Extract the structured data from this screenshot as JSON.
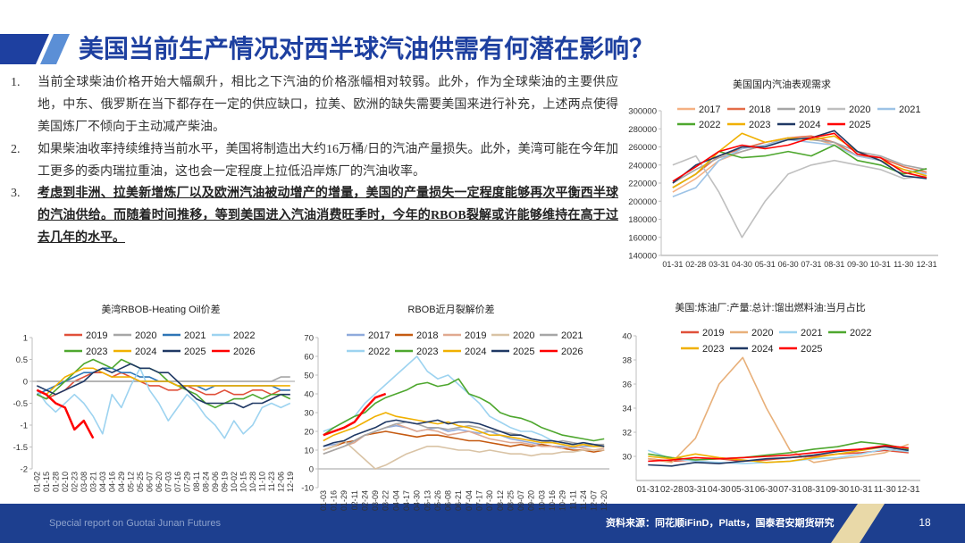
{
  "title": "美国当前生产情况对西半球汽油供需有何潜在影响？",
  "paragraphs": [
    {
      "number": "1.",
      "text": "当前全球柴油价格开始大幅飙升，相比之下汽油的价格涨幅相对较弱。此外，作为全球柴油的主要供应地，中东、俄罗斯在当下都存在一定的供应缺口，拉美、欧洲的缺失需要美国来进行补充，上述两点使得美国炼厂不倾向于主动减产柴油。"
    },
    {
      "number": "2.",
      "text": "如果柴油收率持续维持当前水平，美国将制造出大约16万桶/日的汽油产量损失。此外，美湾可能在今年加工更多的委内瑞拉重油，这也会一定程度上拉低沿岸炼厂的汽油收率。"
    },
    {
      "number": "3.",
      "text": "考虑到非洲、拉美新增炼厂以及欧洲汽油被动增产的增量，美国的产量损失一定程度能够再次平衡西半球的汽油供给。而随着时间推移，等到美国进入汽油消费旺季时，今年的RBOB裂解或许能够维持在高于过去几年的水平。"
    }
  ],
  "footer": {
    "left": "Special report on Guotai Junan Futures",
    "source": "资料来源：同花顺iFinD，Platts，国泰君安期货研究",
    "page": "18"
  },
  "chart_data": [
    {
      "type": "line",
      "title": "美国国内汽油表观需求",
      "categories": [
        "01-31",
        "02-28",
        "03-31",
        "04-30",
        "05-31",
        "06-30",
        "07-31",
        "08-31",
        "09-30",
        "10-31",
        "11-30",
        "12-31"
      ],
      "ylim": [
        140000,
        300000
      ],
      "yticks": [
        140000,
        160000,
        180000,
        200000,
        220000,
        240000,
        260000,
        280000,
        300000
      ],
      "series": [
        {
          "name": "2017",
          "color": "#f5b183",
          "values": [
            210000,
            225000,
            245000,
            255000,
            262000,
            268000,
            270000,
            262000,
            250000,
            245000,
            235000,
            230000
          ]
        },
        {
          "name": "2018",
          "color": "#e46c48",
          "values": [
            215000,
            230000,
            250000,
            258000,
            265000,
            270000,
            272000,
            265000,
            250000,
            248000,
            238000,
            232000
          ]
        },
        {
          "name": "2019",
          "color": "#a6a6a6",
          "values": [
            220000,
            235000,
            248000,
            255000,
            262000,
            270000,
            268000,
            265000,
            255000,
            250000,
            240000,
            235000
          ]
        },
        {
          "name": "2020",
          "color": "#bfbfbf",
          "values": [
            240000,
            250000,
            210000,
            160000,
            200000,
            230000,
            240000,
            245000,
            240000,
            235000,
            225000,
            228000
          ]
        },
        {
          "name": "2021",
          "color": "#9dc3e6",
          "values": [
            205000,
            215000,
            245000,
            258000,
            262000,
            268000,
            265000,
            262000,
            250000,
            245000,
            235000,
            230000
          ]
        },
        {
          "name": "2022",
          "color": "#4ea72e",
          "values": [
            215000,
            230000,
            255000,
            248000,
            250000,
            255000,
            250000,
            262000,
            245000,
            240000,
            230000,
            236000
          ]
        },
        {
          "name": "2023",
          "color": "#f0b000",
          "values": [
            215000,
            230000,
            255000,
            275000,
            265000,
            270000,
            268000,
            272000,
            255000,
            245000,
            235000,
            228000
          ]
        },
        {
          "name": "2024",
          "color": "#1f3864",
          "values": [
            220000,
            240000,
            250000,
            260000,
            260000,
            268000,
            270000,
            278000,
            255000,
            245000,
            228000,
            225000
          ]
        },
        {
          "name": "2025",
          "color": "#ff0000",
          "values": [
            222000,
            238000,
            255000,
            262000,
            258000,
            262000,
            270000,
            275000,
            252000,
            248000,
            232000,
            226000
          ]
        }
      ]
    },
    {
      "type": "line",
      "title": "美湾RBOB-Heating Oil价差",
      "categories": [
        "01-02",
        "01-15",
        "01-28",
        "02-10",
        "02-23",
        "03-08",
        "03-21",
        "04-03",
        "04-16",
        "04-29",
        "05-12",
        "05-25",
        "06-07",
        "06-20",
        "07-03",
        "07-16",
        "07-29",
        "08-11",
        "08-24",
        "09-06",
        "09-19",
        "10-02",
        "10-15",
        "10-28",
        "11-10",
        "11-23",
        "12-06",
        "12-19"
      ],
      "ylim": [
        -2,
        1
      ],
      "yticks": [
        -2,
        -1.5,
        -1,
        -0.5,
        0,
        0.5,
        1
      ],
      "series": [
        {
          "name": "2019",
          "color": "#e0503a",
          "values": [
            -0.3,
            -0.4,
            -0.3,
            -0.2,
            0.0,
            0.1,
            0.2,
            0.2,
            0.1,
            0.2,
            0.1,
            0.0,
            -0.1,
            -0.1,
            -0.2,
            -0.2,
            -0.1,
            -0.2,
            -0.3,
            -0.3,
            -0.2,
            -0.3,
            -0.3,
            -0.2,
            -0.2,
            -0.3,
            -0.2,
            -0.2
          ]
        },
        {
          "name": "2020",
          "color": "#a6a6a6",
          "values": [
            0,
            0,
            0,
            0,
            0,
            0,
            0,
            0,
            0,
            0,
            0,
            0,
            0,
            0,
            0,
            0,
            0,
            0,
            0,
            0,
            0,
            0,
            0,
            0,
            0,
            0,
            0.1,
            0.1
          ]
        },
        {
          "name": "2021",
          "color": "#2e75b6",
          "values": [
            -0.3,
            -0.2,
            -0.1,
            0.0,
            0.1,
            0.2,
            0.2,
            0.3,
            0.3,
            0.2,
            0.2,
            0.1,
            0.1,
            0.0,
            0.0,
            -0.1,
            -0.1,
            -0.1,
            -0.2,
            -0.1,
            -0.1,
            -0.1,
            -0.1,
            -0.1,
            -0.1,
            -0.1,
            -0.2,
            -0.2
          ]
        },
        {
          "name": "2022",
          "color": "#9dd3f0",
          "values": [
            -0.2,
            -0.5,
            -0.7,
            -0.5,
            -0.3,
            -0.5,
            -0.8,
            -1.2,
            -0.3,
            -0.6,
            -0.1,
            0.3,
            -0.2,
            -0.5,
            -0.9,
            -0.6,
            -0.3,
            -0.5,
            -0.8,
            -1.0,
            -1.3,
            -0.9,
            -1.2,
            -1.0,
            -0.6,
            -0.5,
            -0.6,
            -0.5
          ]
        },
        {
          "name": "2023",
          "color": "#4ea72e",
          "values": [
            -0.3,
            -0.4,
            -0.2,
            0.0,
            0.2,
            0.4,
            0.5,
            0.4,
            0.3,
            0.5,
            0.4,
            0.3,
            0.3,
            0.2,
            0.0,
            -0.1,
            -0.2,
            -0.3,
            -0.5,
            -0.6,
            -0.5,
            -0.4,
            -0.4,
            -0.3,
            -0.4,
            -0.3,
            -0.3,
            -0.4
          ]
        },
        {
          "name": "2024",
          "color": "#f0b000",
          "values": [
            -0.2,
            -0.3,
            -0.1,
            0.1,
            0.2,
            0.3,
            0.3,
            0.2,
            0.1,
            0.1,
            0.1,
            0.0,
            0.0,
            0.0,
            0.0,
            -0.1,
            -0.1,
            -0.1,
            -0.1,
            -0.1,
            -0.1,
            -0.1,
            -0.1,
            -0.1,
            -0.1,
            -0.1,
            -0.1,
            -0.1
          ]
        },
        {
          "name": "2025",
          "color": "#1f3864",
          "values": [
            -0.1,
            -0.2,
            -0.3,
            -0.2,
            -0.1,
            0.0,
            0.2,
            0.3,
            0.2,
            0.3,
            0.4,
            0.3,
            0.3,
            0.2,
            0.2,
            0.0,
            -0.2,
            -0.4,
            -0.5,
            -0.5,
            -0.5,
            -0.5,
            -0.6,
            -0.5,
            -0.5,
            -0.4,
            -0.3,
            -0.3
          ]
        },
        {
          "name": "2026",
          "color": "#ff0000",
          "values": [
            -0.2,
            -0.3,
            -0.5,
            -0.6,
            -1.1,
            -0.9,
            -1.3,
            null,
            null,
            null,
            null,
            null,
            null,
            null,
            null,
            null,
            null,
            null,
            null,
            null,
            null,
            null,
            null,
            null,
            null,
            null,
            null,
            null
          ]
        }
      ]
    },
    {
      "type": "line",
      "title": "RBOB近月裂解价差",
      "categories": [
        "01-03",
        "01-16",
        "01-29",
        "02-11",
        "02-24",
        "03-09",
        "03-22",
        "04-04",
        "04-17",
        "04-30",
        "05-13",
        "05-26",
        "06-08",
        "06-21",
        "07-04",
        "07-17",
        "07-30",
        "08-12",
        "08-25",
        "09-07",
        "09-20",
        "10-03",
        "10-16",
        "10-29",
        "11-11",
        "11-24",
        "12-07",
        "12-20"
      ],
      "ylim": [
        -10,
        70
      ],
      "yticks": [
        -10,
        0,
        10,
        20,
        30,
        40,
        50,
        60,
        70
      ],
      "series": [
        {
          "name": "2017",
          "color": "#8faadc",
          "values": [
            12,
            13,
            14,
            15,
            18,
            20,
            22,
            23,
            22,
            20,
            21,
            22,
            20,
            21,
            20,
            19,
            20,
            18,
            16,
            15,
            14,
            13,
            12,
            12,
            11,
            12,
            12,
            12
          ]
        },
        {
          "name": "2018",
          "color": "#c55a11",
          "values": [
            10,
            12,
            14,
            15,
            18,
            19,
            20,
            19,
            18,
            17,
            18,
            18,
            17,
            16,
            15,
            15,
            14,
            13,
            12,
            13,
            12,
            13,
            12,
            11,
            10,
            10,
            9,
            10
          ]
        },
        {
          "name": "2019",
          "color": "#e0a990",
          "values": [
            8,
            10,
            12,
            14,
            18,
            20,
            22,
            24,
            22,
            20,
            21,
            20,
            18,
            19,
            20,
            18,
            16,
            15,
            14,
            14,
            13,
            12,
            12,
            11,
            12,
            11,
            10,
            11
          ]
        },
        {
          "name": "2020",
          "color": "#d9c3a5",
          "values": [
            10,
            12,
            15,
            10,
            5,
            0,
            2,
            5,
            8,
            10,
            12,
            12,
            11,
            10,
            10,
            9,
            10,
            9,
            8,
            8,
            7,
            8,
            8,
            9,
            9,
            10,
            10,
            10
          ]
        },
        {
          "name": "2021",
          "color": "#a6a6a6",
          "values": [
            8,
            10,
            12,
            15,
            18,
            20,
            22,
            24,
            25,
            24,
            22,
            22,
            21,
            22,
            23,
            22,
            20,
            20,
            19,
            18,
            16,
            15,
            14,
            15,
            14,
            13,
            13,
            13
          ]
        },
        {
          "name": "2022",
          "color": "#9dd3f0",
          "values": [
            20,
            22,
            25,
            28,
            35,
            40,
            45,
            50,
            55,
            60,
            52,
            48,
            50,
            45,
            40,
            35,
            28,
            25,
            22,
            20,
            20,
            18,
            15,
            14,
            13,
            14,
            13,
            12
          ]
        },
        {
          "name": "2023",
          "color": "#4ea72e",
          "values": [
            18,
            22,
            25,
            28,
            30,
            35,
            38,
            40,
            42,
            45,
            46,
            44,
            45,
            48,
            40,
            38,
            35,
            30,
            28,
            27,
            25,
            22,
            20,
            18,
            17,
            16,
            15,
            16
          ]
        },
        {
          "name": "2024",
          "color": "#f0b000",
          "values": [
            15,
            18,
            20,
            22,
            25,
            28,
            30,
            28,
            27,
            26,
            25,
            24,
            25,
            23,
            22,
            20,
            18,
            18,
            17,
            16,
            15,
            14,
            14,
            13,
            12,
            13,
            12,
            12
          ]
        },
        {
          "name": "2025",
          "color": "#1f3864",
          "values": [
            12,
            14,
            15,
            18,
            20,
            22,
            25,
            26,
            25,
            24,
            25,
            26,
            24,
            25,
            25,
            24,
            22,
            20,
            18,
            18,
            16,
            15,
            15,
            14,
            13,
            14,
            13,
            12
          ]
        },
        {
          "name": "2026",
          "color": "#ff0000",
          "values": [
            18,
            20,
            22,
            25,
            32,
            38,
            40,
            null,
            null,
            null,
            null,
            null,
            null,
            null,
            null,
            null,
            null,
            null,
            null,
            null,
            null,
            null,
            null,
            null,
            null,
            null,
            null,
            null
          ]
        }
      ]
    },
    {
      "type": "line",
      "title": "美国:炼油厂:产量:总计:馏出燃料油:当月占比",
      "categories": [
        "01-31",
        "02-28",
        "03-31",
        "04-30",
        "05-31",
        "06-30",
        "07-31",
        "08-31",
        "09-30",
        "10-31",
        "11-30",
        "12-31"
      ],
      "ylim": [
        28,
        40
      ],
      "yticks": [
        30,
        32,
        34,
        36,
        38,
        40
      ],
      "series": [
        {
          "name": "2019",
          "color": "#e0503a",
          "values": [
            29.8,
            29.6,
            29.7,
            29.8,
            29.6,
            29.7,
            29.9,
            30.0,
            30.2,
            30.3,
            30.5,
            30.3
          ]
        },
        {
          "name": "2020",
          "color": "#e8b07a",
          "values": [
            29.8,
            29.5,
            31.5,
            36.0,
            38.2,
            34.0,
            30.5,
            29.5,
            29.8,
            30.0,
            30.3,
            31.0
          ]
        },
        {
          "name": "2021",
          "color": "#9dd3f0",
          "values": [
            30.5,
            29.8,
            29.6,
            29.5,
            29.4,
            29.5,
            29.6,
            29.8,
            29.9,
            30.2,
            30.6,
            30.4
          ]
        },
        {
          "name": "2022",
          "color": "#4ea72e",
          "values": [
            30.2,
            29.9,
            29.7,
            29.8,
            29.9,
            30.1,
            30.3,
            30.6,
            30.8,
            31.2,
            31.0,
            30.6
          ]
        },
        {
          "name": "2023",
          "color": "#f0b000",
          "values": [
            30.0,
            29.8,
            30.2,
            29.9,
            29.7,
            29.5,
            29.6,
            29.9,
            30.2,
            30.5,
            30.8,
            30.7
          ]
        },
        {
          "name": "2024",
          "color": "#1f3864",
          "values": [
            29.3,
            29.2,
            29.5,
            29.4,
            29.6,
            29.8,
            29.9,
            30.1,
            30.4,
            30.6,
            30.8,
            30.5
          ]
        },
        {
          "name": "2025",
          "color": "#ff0000",
          "values": [
            29.6,
            29.7,
            29.9,
            29.8,
            29.9,
            30.0,
            30.1,
            30.3,
            30.5,
            30.6,
            30.9,
            30.7
          ]
        }
      ]
    }
  ]
}
